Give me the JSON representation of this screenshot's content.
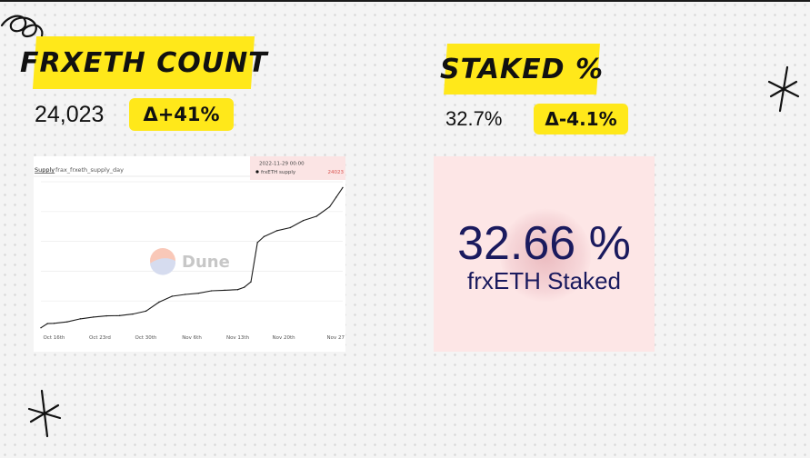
{
  "frxeth": {
    "title": "FRXETH COUNT",
    "value": "24,023",
    "delta": "Δ+41%"
  },
  "staked": {
    "title": "STAKED %",
    "value": "32.7%",
    "delta": "Δ-4.1%",
    "card_value": "32.66 %",
    "card_label": "frxETH Staked"
  },
  "chart": {
    "tab_label": "Supply",
    "query_name": "frax_frxeth_supply_day",
    "tooltip": {
      "date": "2022-11-29 00:00",
      "series": "frxETH supply",
      "value": "24023"
    },
    "watermark": "Dune",
    "colors": {
      "line": "#1a1a1a",
      "tooltip_bg": "#fbe4e4",
      "tooltip_value": "#d9534f",
      "grid": "#ebebeb"
    }
  },
  "chart_data": {
    "type": "line",
    "title": "",
    "xlabel": "",
    "ylabel": "",
    "x_ticks": [
      "Oct 16th",
      "Oct 23rd",
      "Oct 30th",
      "Nov 6th",
      "Nov 13th",
      "Nov 20th",
      "Nov 27"
    ],
    "y_ticks": [
      "",
      "",
      "",
      "",
      ""
    ],
    "ylim": [
      0,
      25000
    ],
    "grid": true,
    "series": [
      {
        "name": "frxETH supply",
        "x": [
          "2022-10-14",
          "2022-10-15",
          "2022-10-16",
          "2022-10-18",
          "2022-10-20",
          "2022-10-22",
          "2022-10-24",
          "2022-10-26",
          "2022-10-28",
          "2022-10-30",
          "2022-11-01",
          "2022-11-03",
          "2022-11-05",
          "2022-11-07",
          "2022-11-09",
          "2022-11-11",
          "2022-11-13",
          "2022-11-14",
          "2022-11-15",
          "2022-11-16",
          "2022-11-17",
          "2022-11-19",
          "2022-11-21",
          "2022-11-23",
          "2022-11-25",
          "2022-11-27",
          "2022-11-28",
          "2022-11-29"
        ],
        "values": [
          500,
          1200,
          1250,
          1500,
          2000,
          2300,
          2500,
          2550,
          2800,
          3300,
          4800,
          5800,
          6100,
          6300,
          6700,
          6800,
          6900,
          7300,
          8200,
          14800,
          15800,
          16800,
          17300,
          18500,
          19200,
          20800,
          22400,
          24023
        ]
      }
    ]
  }
}
